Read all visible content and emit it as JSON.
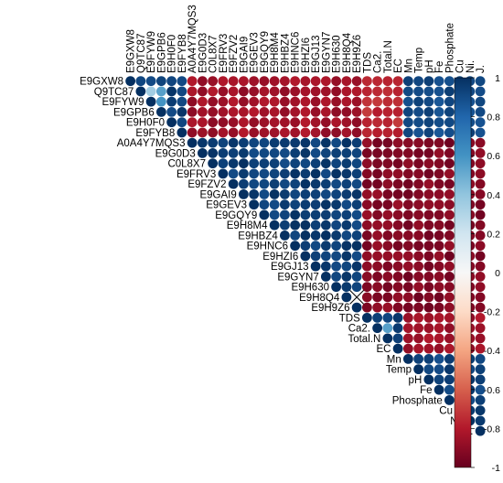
{
  "chart_data": {
    "type": "heatmap",
    "style": "upper-triangle circle correlation plot",
    "variables": [
      "E9GXW8",
      "Q9TC87",
      "E9FYW9",
      "E9GPB6",
      "E9H0F0",
      "E9FYB8",
      "A0A4Y7MQS3",
      "E9G0D3",
      "C0L8X7",
      "E9FRV3",
      "E9FZV2",
      "E9GAI9",
      "E9GEV3",
      "E9GQY9",
      "E9H8M4",
      "E9HBZ4",
      "E9HNC6",
      "E9HZI6",
      "E9GJ13",
      "E9GYN7",
      "E9H630",
      "E9H8Q4",
      "E9H9Z6",
      "TDS",
      "Ca2.",
      "Total.N",
      "EC",
      "Mn",
      "Temp",
      "pH",
      "Fe",
      "Phosphate",
      "Cu",
      "Ni.",
      "J."
    ],
    "group_sizes": [
      6,
      17,
      4,
      8
    ],
    "block_values": {
      "1-1": 0.95,
      "1-2": -0.85,
      "1-3": -0.75,
      "1-4": 0.9,
      "2-2": 0.95,
      "2-3": -0.92,
      "2-4": -0.93,
      "3-3": 0.92,
      "3-4": -0.85,
      "4-4": 0.93
    },
    "special_values": [
      {
        "row": "Q9TC87",
        "col": "E9FYW9",
        "value": 0.35
      },
      {
        "row": "Q9TC87",
        "col": "E9GPB6",
        "value": 0.55
      },
      {
        "row": "E9FYW9",
        "col": "E9GPB6",
        "value": 0.6
      },
      {
        "row": "E9H8Q4",
        "col": "E9H9Z6",
        "value": 0.0,
        "crossed": true
      },
      {
        "row": "Ca2.",
        "col": "Total.N",
        "value": 0.55
      }
    ],
    "color_scale": {
      "low": "#67001F",
      "mid": "#F7F7F7",
      "high": "#053061"
    },
    "colorbar_range": [
      -1,
      1
    ],
    "colorbar_ticks": [
      "1",
      "0.8",
      "0.6",
      "0.4",
      "0.2",
      "0",
      "-0.2",
      "-0.4",
      "-0.6",
      "-0.8",
      "-1"
    ],
    "legend_position": "right"
  }
}
